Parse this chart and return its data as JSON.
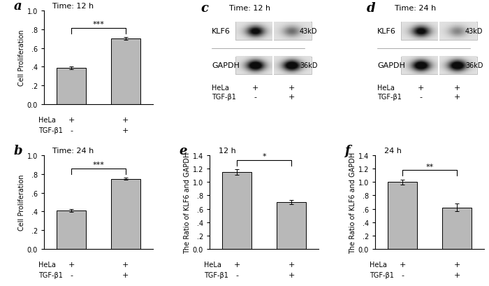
{
  "panel_a": {
    "title": "Time: 12 h",
    "label": "a",
    "ylabel": "Cell Proliferation",
    "ylim": [
      0.0,
      1.0
    ],
    "yticks": [
      0.0,
      0.2,
      0.4,
      0.6,
      0.8,
      1.0
    ],
    "yticklabels": [
      "0.0",
      ".2",
      ".4",
      ".6",
      ".8",
      "1.0"
    ],
    "bars": [
      0.39,
      0.7
    ],
    "errors": [
      0.013,
      0.015
    ],
    "significance": "***",
    "bar_color": "#b8b8b8",
    "xlabel_rows": [
      "HeLa",
      "TGF-β1"
    ],
    "xlabel_signs": [
      [
        "+",
        "+"
      ],
      [
        "-",
        "+"
      ]
    ]
  },
  "panel_b": {
    "title": "Time: 24 h",
    "label": "b",
    "ylabel": "Cell Proliferation",
    "ylim": [
      0.0,
      1.0
    ],
    "yticks": [
      0.0,
      0.2,
      0.4,
      0.6,
      0.8,
      1.0
    ],
    "yticklabels": [
      "0.0",
      ".2",
      ".4",
      ".6",
      ".8",
      "1.0"
    ],
    "bars": [
      0.41,
      0.75
    ],
    "errors": [
      0.012,
      0.013
    ],
    "significance": "***",
    "bar_color": "#b8b8b8",
    "xlabel_rows": [
      "HeLa",
      "TGF-β1"
    ],
    "xlabel_signs": [
      [
        "+",
        "+"
      ],
      [
        "-",
        "+"
      ]
    ]
  },
  "panel_e": {
    "title": "12 h",
    "label": "e",
    "ylabel": "The Ratio of KLF6 and GAPDH",
    "ylim": [
      0.0,
      1.4
    ],
    "yticks": [
      0.0,
      0.2,
      0.4,
      0.6,
      0.8,
      1.0,
      1.2,
      1.4
    ],
    "yticklabels": [
      "0.0",
      ".2",
      ".4",
      ".6",
      ".8",
      "1.0",
      "1.2",
      "1.4"
    ],
    "bars": [
      1.15,
      0.7
    ],
    "errors": [
      0.04,
      0.03
    ],
    "significance": "*",
    "bar_color": "#b8b8b8",
    "xlabel_rows": [
      "HeLa",
      "TGF-β1"
    ],
    "xlabel_signs": [
      [
        "+",
        "+"
      ],
      [
        "-",
        "+"
      ]
    ]
  },
  "panel_f": {
    "title": "24 h",
    "label": "f",
    "ylabel": "The Ratio of KLF6 and GAPDH",
    "ylim": [
      0.0,
      1.4
    ],
    "yticks": [
      0.0,
      0.2,
      0.4,
      0.6,
      0.8,
      1.0,
      1.2,
      1.4
    ],
    "yticklabels": [
      "0.0",
      ".2",
      ".4",
      ".6",
      ".8",
      "1.0",
      "1.2",
      "1.4"
    ],
    "bars": [
      1.0,
      0.62
    ],
    "errors": [
      0.04,
      0.06
    ],
    "significance": "**",
    "bar_color": "#b8b8b8",
    "xlabel_rows": [
      "HeLa",
      "TGF-β1"
    ],
    "xlabel_signs": [
      [
        "+",
        "+"
      ],
      [
        "-",
        "+"
      ]
    ]
  },
  "panel_c": {
    "label": "c",
    "title": "Time: 12 h",
    "bands": [
      {
        "label": "KLF6",
        "kd": "43kD",
        "lane1_dark": 0.75,
        "lane2_dark": 0.35
      },
      {
        "label": "GAPDH",
        "kd": "36kD",
        "lane1_dark": 0.9,
        "lane2_dark": 0.9
      }
    ],
    "xlabel_rows": [
      "HeLa",
      "TGF-β1"
    ],
    "xlabel_signs": [
      [
        "+",
        "+"
      ],
      [
        "-",
        "+"
      ]
    ]
  },
  "panel_d": {
    "label": "d",
    "title": "Time: 24 h",
    "bands": [
      {
        "label": "KLF6",
        "kd": "43kD",
        "lane1_dark": 0.75,
        "lane2_dark": 0.28
      },
      {
        "label": "GAPDH",
        "kd": "36kD",
        "lane1_dark": 0.9,
        "lane2_dark": 0.9
      }
    ],
    "xlabel_rows": [
      "HeLa",
      "TGF-β1"
    ],
    "xlabel_signs": [
      [
        "+",
        "+"
      ],
      [
        "-",
        "+"
      ]
    ]
  },
  "background_color": "#ffffff"
}
